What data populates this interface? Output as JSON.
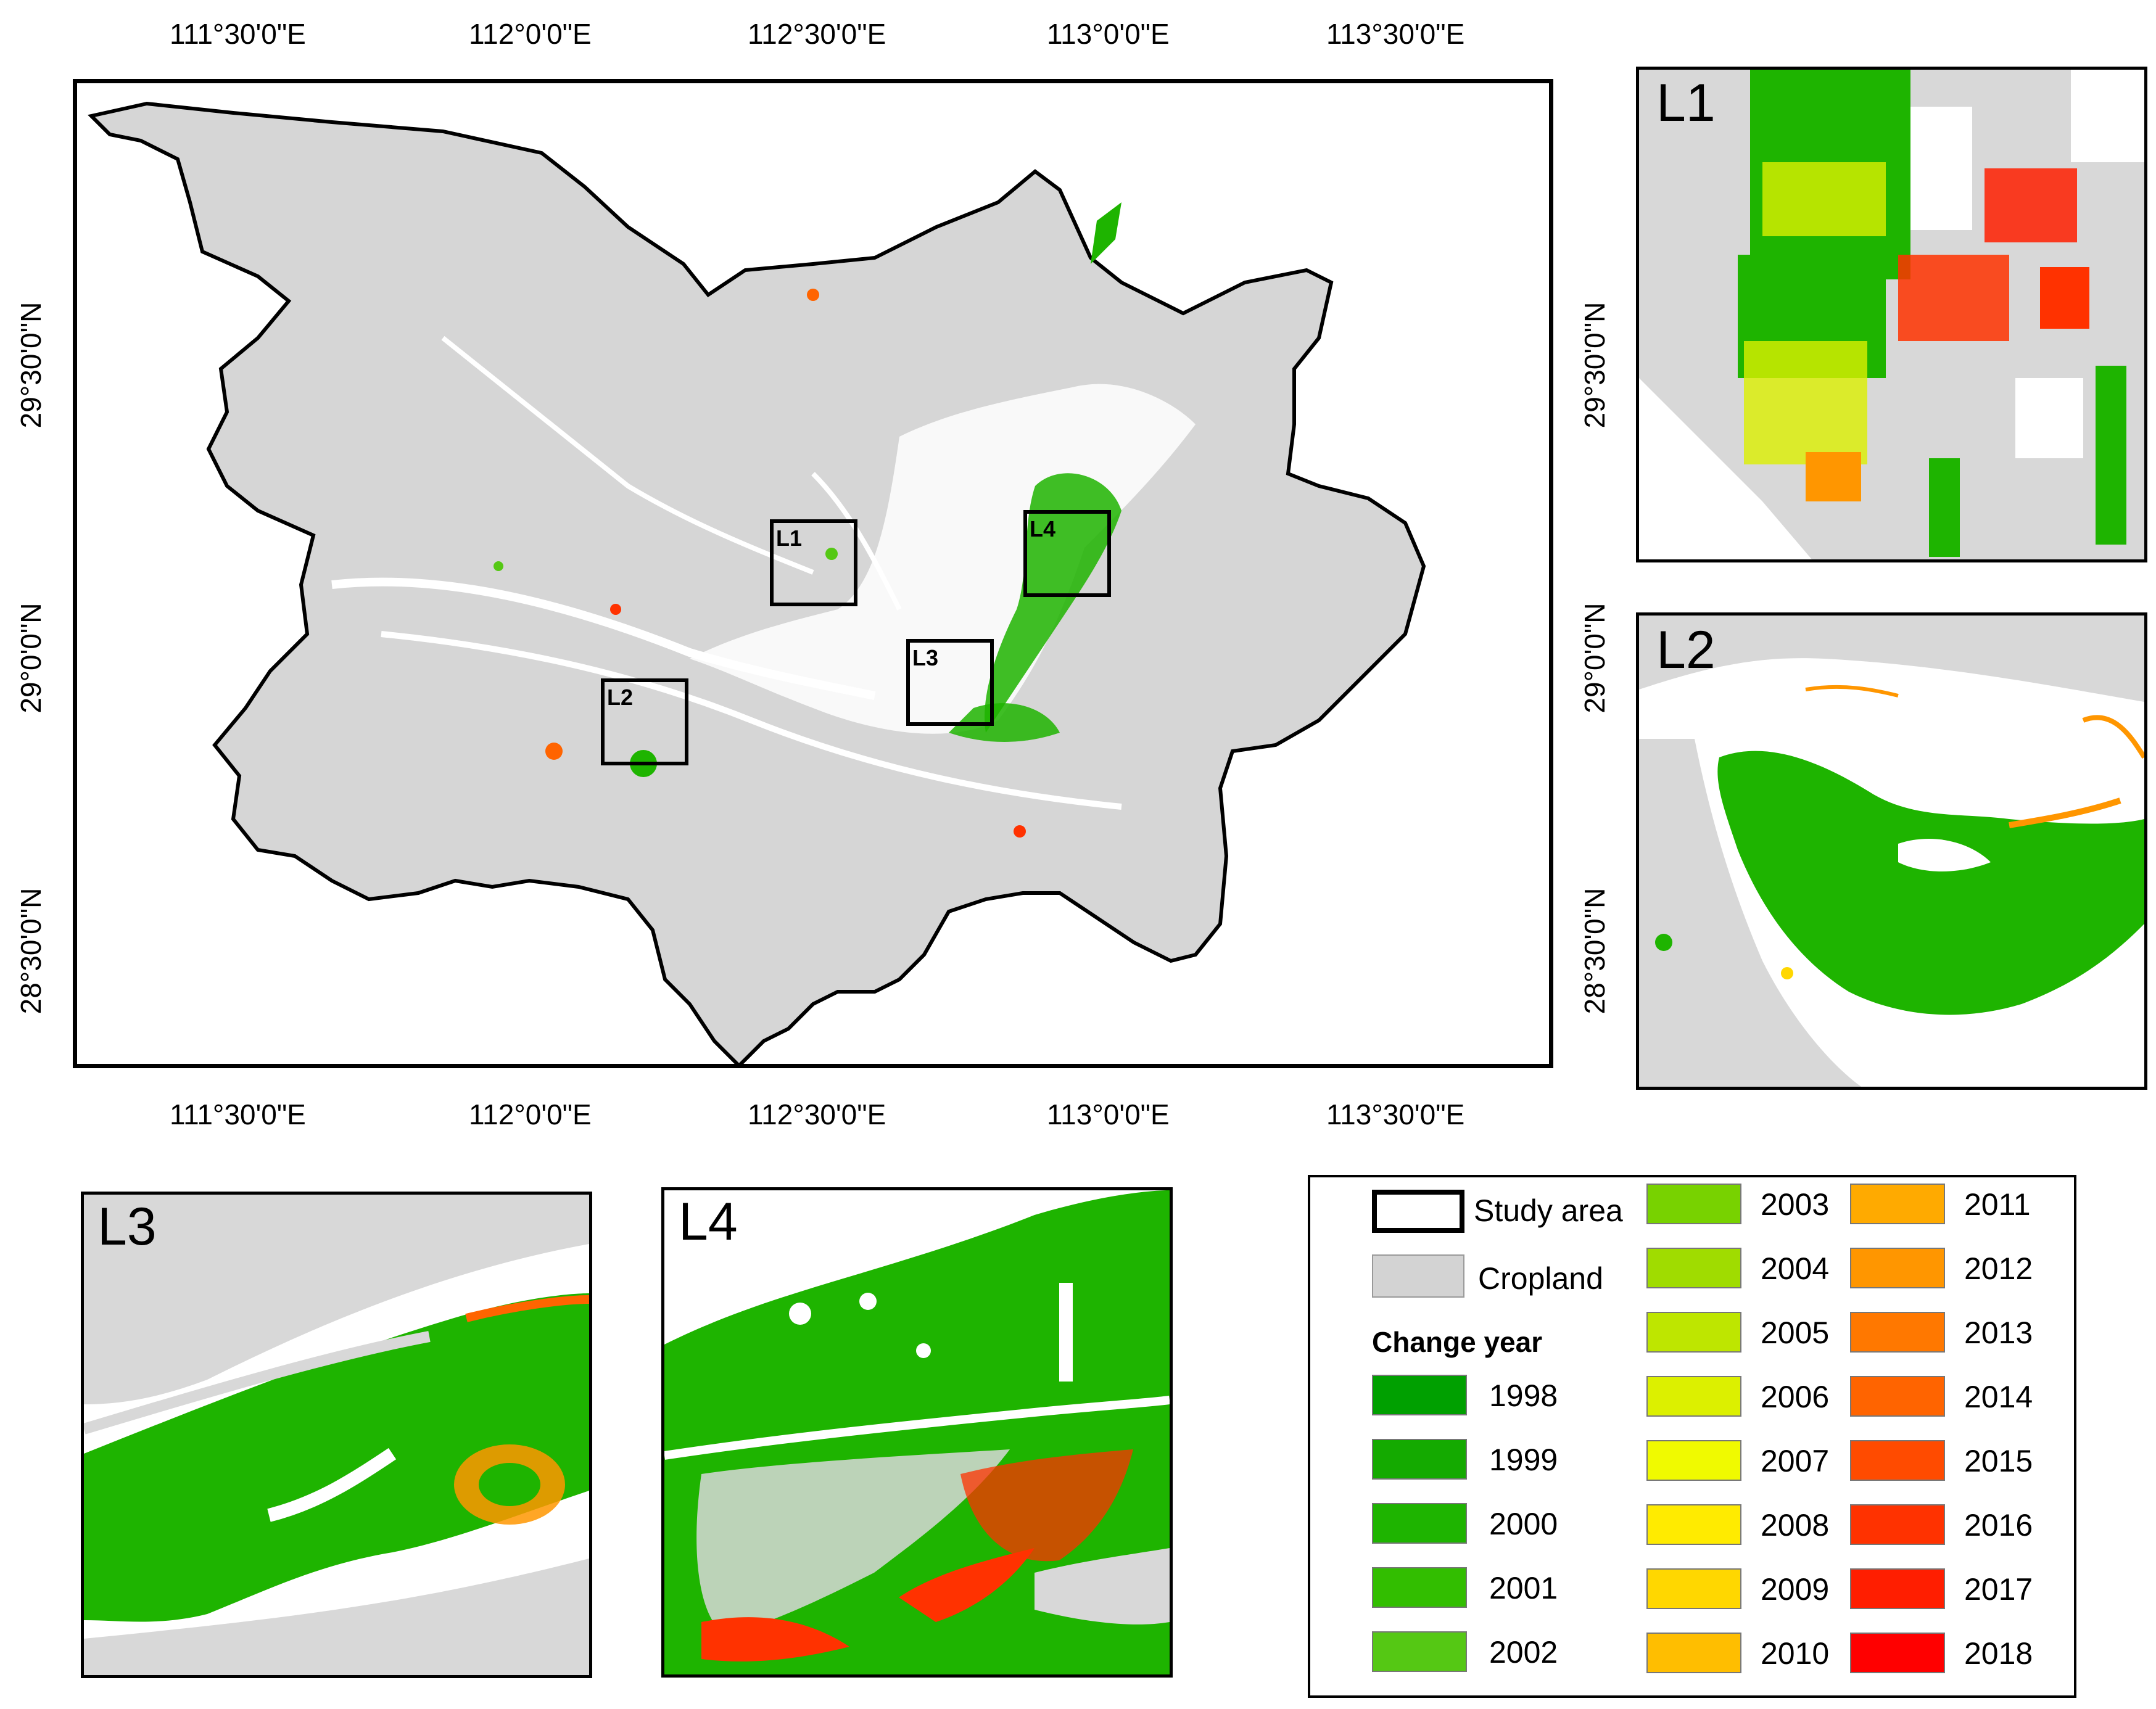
{
  "map": {
    "lon_ticks": [
      "111°30'0\"E",
      "112°0'0\"E",
      "112°30'0\"E",
      "113°0'0\"E",
      "113°30'0\"E"
    ],
    "lat_ticks": [
      "29°30'0\"N",
      "29°0'0\"N",
      "28°30'0\"N"
    ],
    "boxes": [
      "L1",
      "L2",
      "L3",
      "L4"
    ]
  },
  "insets": {
    "l1": "L1",
    "l2": "L2",
    "l3": "L3",
    "l4": "L4"
  },
  "legend": {
    "study_area": "Study area",
    "cropland": "Cropland",
    "change_year_title": "Change year",
    "years": [
      {
        "year": "1998",
        "color": "#00a000"
      },
      {
        "year": "1999",
        "color": "#14aa00"
      },
      {
        "year": "2000",
        "color": "#1eb400"
      },
      {
        "year": "2001",
        "color": "#32be00"
      },
      {
        "year": "2002",
        "color": "#55c814"
      },
      {
        "year": "2003",
        "color": "#78d200"
      },
      {
        "year": "2004",
        "color": "#a0dc00"
      },
      {
        "year": "2005",
        "color": "#bee600"
      },
      {
        "year": "2006",
        "color": "#dcf000"
      },
      {
        "year": "2007",
        "color": "#f0fa00"
      },
      {
        "year": "2008",
        "color": "#ffeb00"
      },
      {
        "year": "2009",
        "color": "#ffd700"
      },
      {
        "year": "2010",
        "color": "#ffbe00"
      },
      {
        "year": "2011",
        "color": "#ffaa00"
      },
      {
        "year": "2012",
        "color": "#ff9600"
      },
      {
        "year": "2013",
        "color": "#ff7800"
      },
      {
        "year": "2014",
        "color": "#ff6400"
      },
      {
        "year": "2015",
        "color": "#ff4b00"
      },
      {
        "year": "2016",
        "color": "#ff3200"
      },
      {
        "year": "2017",
        "color": "#ff1e00"
      },
      {
        "year": "2018",
        "color": "#ff0000"
      }
    ],
    "cropland_color": "#d3d3d3"
  }
}
